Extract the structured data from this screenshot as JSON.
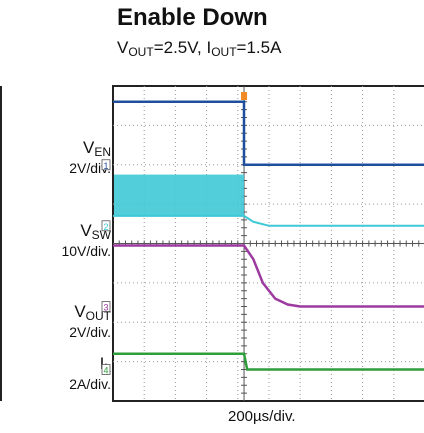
{
  "chart_data": {
    "type": "line",
    "title": "Enable Down",
    "subtitle_parts": [
      "V",
      "OUT",
      "=2.5V, I",
      "OUT",
      "=1.5A"
    ],
    "xlabel": "200µs/div.",
    "x_divisions": 10,
    "y_divisions": 8,
    "grid": true,
    "trigger_time_div": 4.2,
    "channels": [
      {
        "name_main": "V",
        "name_sub": "EN",
        "scale": "2V/div.",
        "marker": "1",
        "color": "#1f4e9c",
        "x": [
          0,
          4.2,
          4.2,
          10
        ],
        "y": [
          7.6,
          7.6,
          6.0,
          6.0
        ]
      },
      {
        "name_main": "V",
        "name_sub": "SW",
        "scale": "10V/div.",
        "marker": "2",
        "color": "#3fc8d6",
        "x": [
          0,
          4.2,
          4.3,
          4.5,
          5.0,
          10
        ],
        "y": [
          4.7,
          4.7,
          4.65,
          4.55,
          4.45,
          4.45
        ]
      },
      {
        "name_main": "V",
        "name_sub": "OUT",
        "scale": "2V/div.",
        "marker": "3",
        "color": "#9c3aa0",
        "x": [
          0,
          4.2,
          4.5,
          4.8,
          5.2,
          5.6,
          6.0,
          10
        ],
        "y": [
          3.95,
          3.95,
          3.6,
          3.0,
          2.6,
          2.45,
          2.4,
          2.4
        ]
      },
      {
        "name_main": "I",
        "name_sub": "L",
        "scale": "2A/div.",
        "marker": "4",
        "color": "#2e9e3a",
        "x": [
          0,
          4.2,
          4.3,
          10
        ],
        "y": [
          1.2,
          1.2,
          0.8,
          0.8
        ]
      }
    ]
  }
}
